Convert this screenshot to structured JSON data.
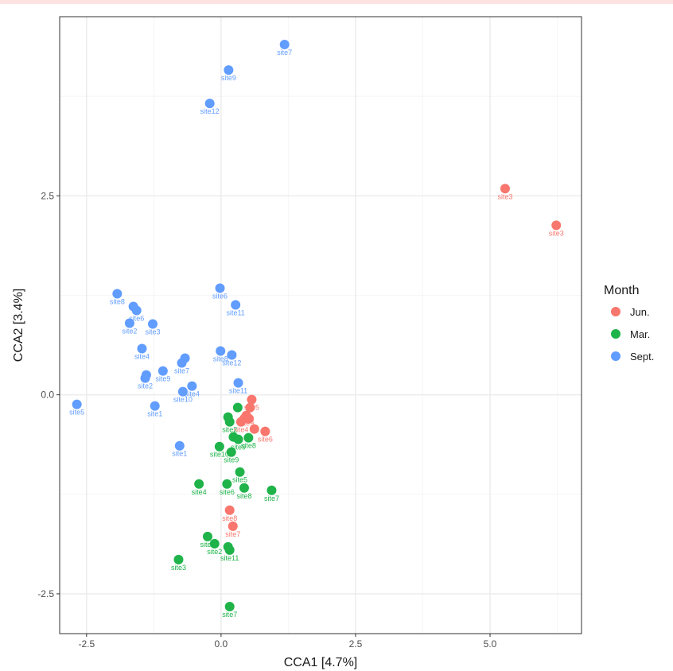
{
  "chart_data": {
    "type": "scatter",
    "xlabel": "CCA1   [4.7%]",
    "ylabel": "CCA2   [3.4%]",
    "xlim": [
      -3.0,
      6.7
    ],
    "ylim": [
      -3.0,
      4.75
    ],
    "xticks": [
      -2.5,
      0.0,
      2.5,
      5.0
    ],
    "xtick_labels": [
      "-2.5",
      "0.0",
      "2.5",
      "5.0"
    ],
    "yticks": [
      -2.5,
      0.0,
      2.5
    ],
    "ytick_labels": [
      "-2.5",
      "0.0",
      "2.5"
    ],
    "grid": true,
    "legend": {
      "title": "Month",
      "placement": "right",
      "entries": [
        {
          "name": "Jun.",
          "color": "#f8766d"
        },
        {
          "name": "Mar.",
          "color": "#1fb34a"
        },
        {
          "name": "Sept.",
          "color": "#619cff"
        }
      ]
    },
    "series": [
      {
        "name": "Jun.",
        "color": "#f8766d",
        "points": [
          {
            "x": 5.28,
            "y": 2.59,
            "label": "site3"
          },
          {
            "x": 6.23,
            "y": 2.13,
            "label": "site3"
          },
          {
            "x": 0.57,
            "y": -0.06,
            "label": "site5"
          },
          {
            "x": 0.54,
            "y": -0.16,
            "label": ""
          },
          {
            "x": 0.47,
            "y": -0.26,
            "label": "site9"
          },
          {
            "x": 0.43,
            "y": -0.3,
            "label": ""
          },
          {
            "x": 0.52,
            "y": -0.3,
            "label": ""
          },
          {
            "x": 0.37,
            "y": -0.34,
            "label": "site4"
          },
          {
            "x": 0.62,
            "y": -0.43,
            "label": ""
          },
          {
            "x": 0.82,
            "y": -0.46,
            "label": "site6"
          },
          {
            "x": 0.16,
            "y": -1.45,
            "label": "site8"
          },
          {
            "x": 0.22,
            "y": -1.65,
            "label": "site7"
          }
        ]
      },
      {
        "name": "Mar.",
        "color": "#1fb34a",
        "points": [
          {
            "x": 0.31,
            "y": -0.16,
            "label": ""
          },
          {
            "x": 0.13,
            "y": -0.28,
            "label": ""
          },
          {
            "x": 0.16,
            "y": -0.34,
            "label": "site2"
          },
          {
            "x": 0.23,
            "y": -0.53,
            "label": ""
          },
          {
            "x": 0.32,
            "y": -0.56,
            "label": "site9"
          },
          {
            "x": 0.51,
            "y": -0.54,
            "label": "site8"
          },
          {
            "x": -0.03,
            "y": -0.65,
            "label": "site10"
          },
          {
            "x": 0.19,
            "y": -0.72,
            "label": "site9"
          },
          {
            "x": 0.35,
            "y": -0.97,
            "label": "site5"
          },
          {
            "x": -0.41,
            "y": -1.12,
            "label": "site4"
          },
          {
            "x": 0.11,
            "y": -1.12,
            "label": "site6"
          },
          {
            "x": 0.43,
            "y": -1.17,
            "label": "site8"
          },
          {
            "x": 0.94,
            "y": -1.2,
            "label": "site7"
          },
          {
            "x": -0.25,
            "y": -1.78,
            "label": "site1"
          },
          {
            "x": -0.12,
            "y": -1.87,
            "label": "site2"
          },
          {
            "x": 0.13,
            "y": -1.91,
            "label": ""
          },
          {
            "x": 0.16,
            "y": -1.95,
            "label": "site11"
          },
          {
            "x": -0.79,
            "y": -2.07,
            "label": "site3"
          },
          {
            "x": 0.16,
            "y": -2.66,
            "label": "site7"
          }
        ]
      },
      {
        "name": "Sept.",
        "color": "#619cff",
        "points": [
          {
            "x": 1.18,
            "y": 4.4,
            "label": "site7"
          },
          {
            "x": 0.14,
            "y": 4.08,
            "label": "site9"
          },
          {
            "x": -0.21,
            "y": 3.66,
            "label": "site12"
          },
          {
            "x": -1.93,
            "y": 1.27,
            "label": "site8"
          },
          {
            "x": -0.02,
            "y": 1.34,
            "label": "site6"
          },
          {
            "x": 0.27,
            "y": 1.13,
            "label": "site11"
          },
          {
            "x": -1.63,
            "y": 1.11,
            "label": ""
          },
          {
            "x": -1.57,
            "y": 1.06,
            "label": "site6"
          },
          {
            "x": -1.7,
            "y": 0.9,
            "label": "site2"
          },
          {
            "x": -1.27,
            "y": 0.89,
            "label": "site3"
          },
          {
            "x": -1.47,
            "y": 0.58,
            "label": "site4"
          },
          {
            "x": -0.01,
            "y": 0.55,
            "label": "site8"
          },
          {
            "x": 0.2,
            "y": 0.5,
            "label": "site12"
          },
          {
            "x": -0.67,
            "y": 0.46,
            "label": ""
          },
          {
            "x": -0.73,
            "y": 0.4,
            "label": "site7"
          },
          {
            "x": -1.08,
            "y": 0.3,
            "label": "site9"
          },
          {
            "x": -1.39,
            "y": 0.25,
            "label": ""
          },
          {
            "x": -1.41,
            "y": 0.21,
            "label": "site2"
          },
          {
            "x": 0.32,
            "y": 0.15,
            "label": "site11"
          },
          {
            "x": -0.54,
            "y": 0.11,
            "label": "site4"
          },
          {
            "x": -0.71,
            "y": 0.04,
            "label": "site10"
          },
          {
            "x": -2.68,
            "y": -0.12,
            "label": "site5"
          },
          {
            "x": -1.23,
            "y": -0.14,
            "label": "site1"
          },
          {
            "x": -0.77,
            "y": -0.64,
            "label": "site1"
          }
        ]
      }
    ]
  }
}
